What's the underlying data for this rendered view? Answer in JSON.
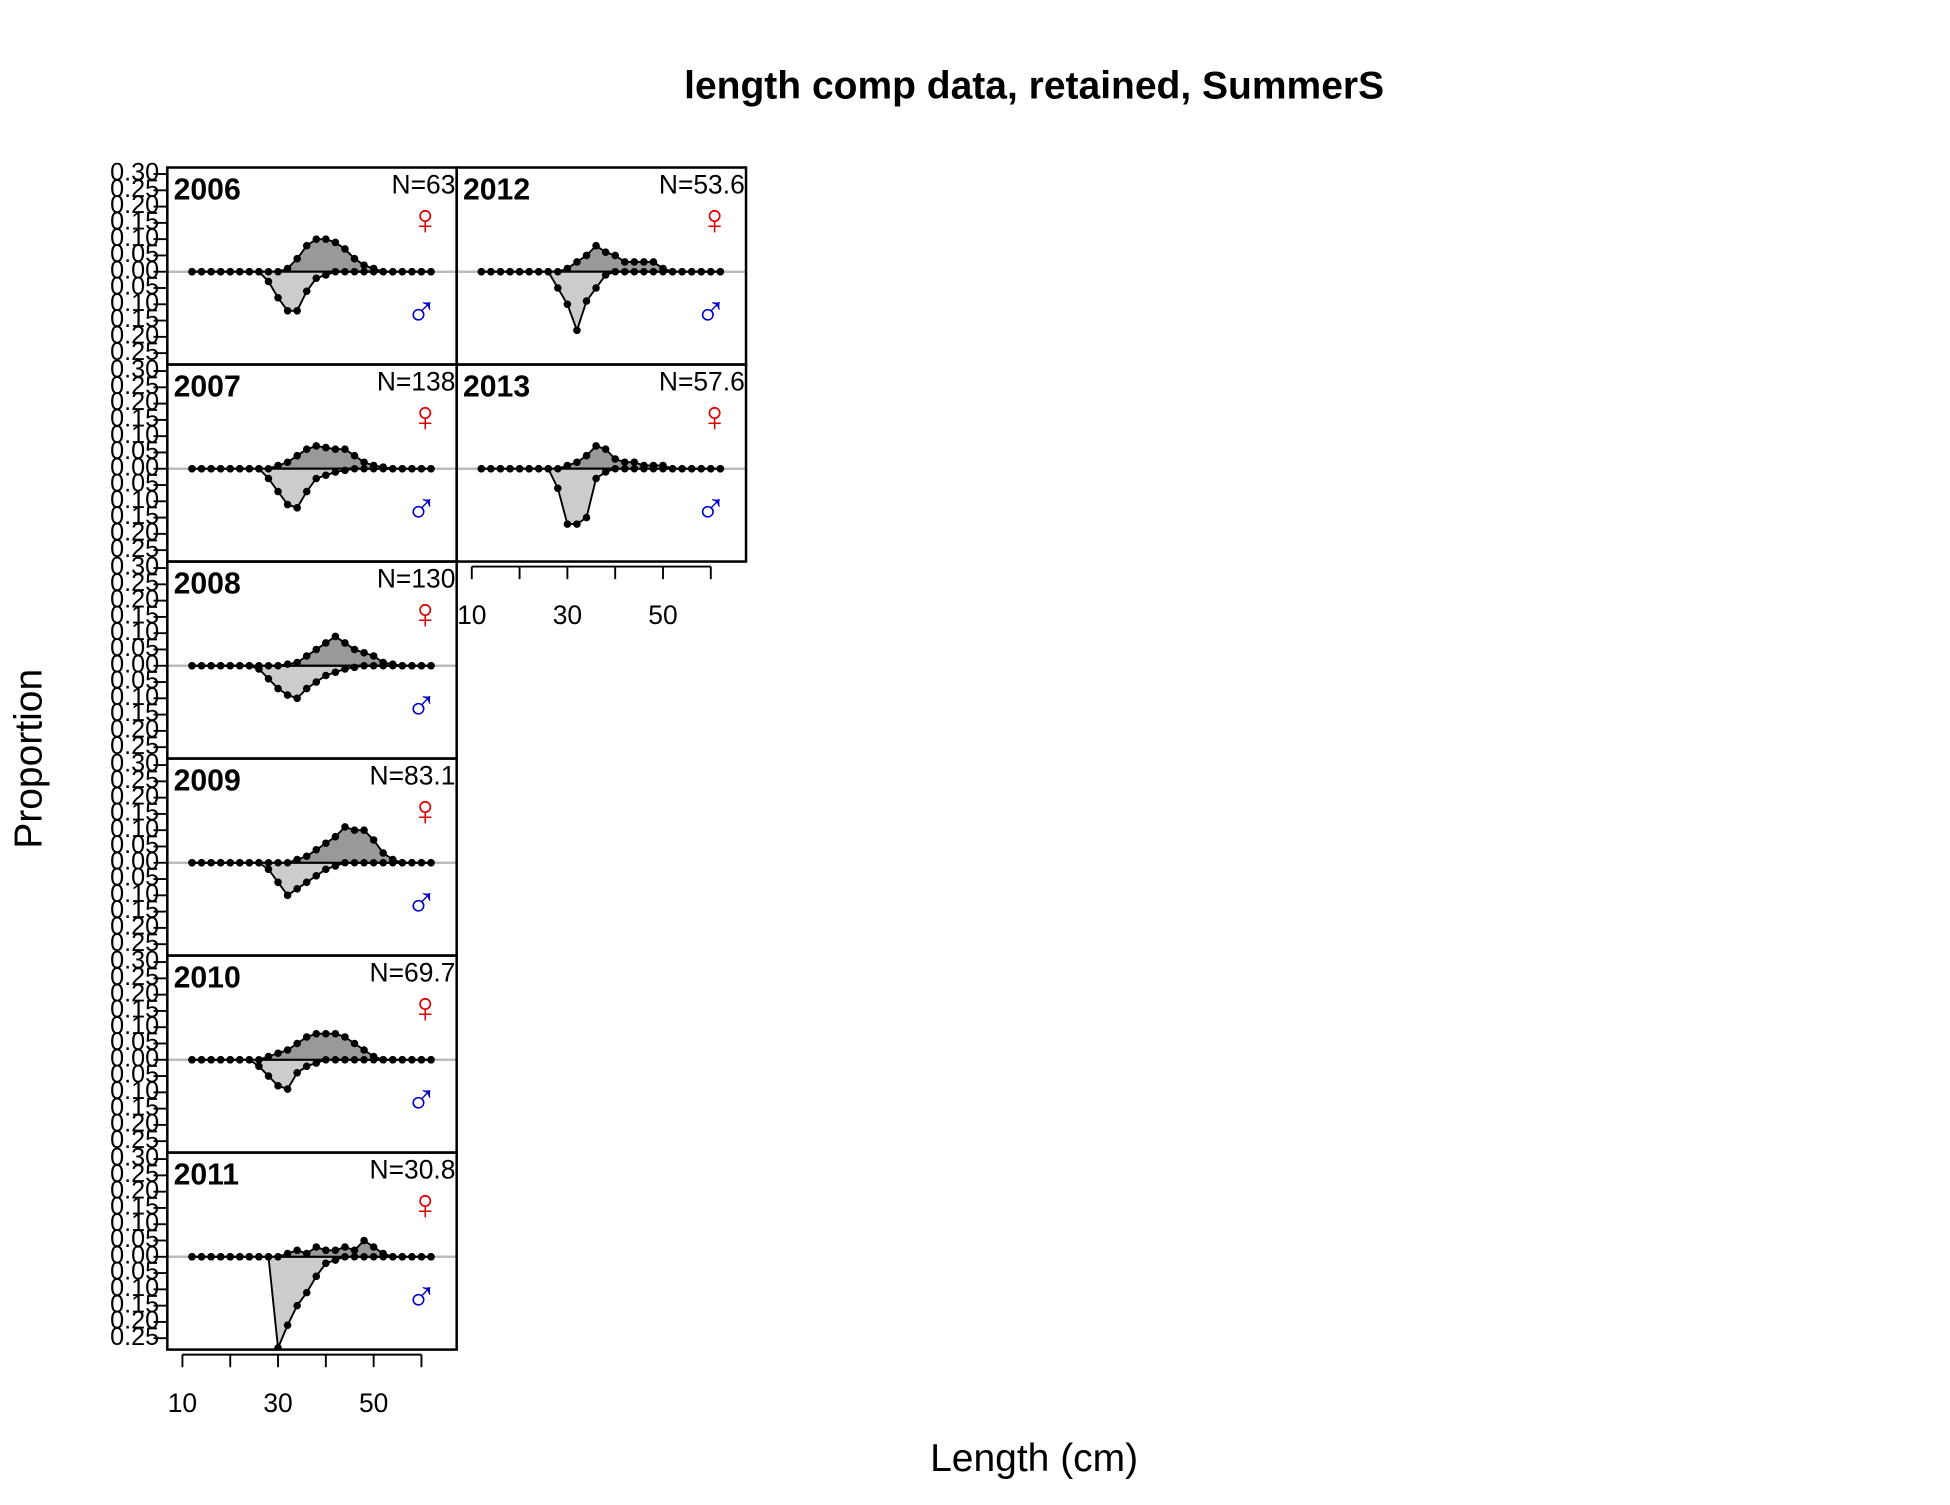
{
  "chart_data": {
    "type": "mirrored-area",
    "title": "length comp data, retained, SummerS",
    "xlabel": "Length (cm)",
    "ylabel": "Proportion",
    "bins": [
      12,
      14,
      16,
      18,
      20,
      22,
      24,
      26,
      28,
      30,
      32,
      34,
      36,
      38,
      40,
      42,
      44,
      46,
      48,
      50,
      52,
      54,
      56,
      58,
      60,
      62
    ],
    "xlim": [
      6.84,
      67.37
    ],
    "xticks": [
      10,
      {
        "value": 20,
        "label": null
      },
      30,
      {
        "value": 40,
        "label": null
      },
      50,
      {
        "value": 60,
        "label": null
      }
    ],
    "ylim": [
      -0.285,
      0.32
    ],
    "yticks": [
      {
        "value": 0.3,
        "label": "0.30"
      },
      0.25,
      {
        "value": 0.2,
        "label": "0.20"
      },
      0.15,
      {
        "value": 0.1,
        "label": "0.10"
      },
      0.05,
      {
        "value": 0,
        "label": "0.00"
      },
      {
        "value": -0.05,
        "label": "0.05"
      },
      {
        "value": -0.1,
        "label": "0.10"
      },
      {
        "value": -0.15,
        "label": "0.15"
      },
      {
        "value": -0.2,
        "label": "0.20"
      },
      {
        "value": -0.25,
        "label": "0.25"
      }
    ],
    "panels": [
      {
        "year": "2006",
        "n": {
          "value": 63,
          "label": "N=63"
        },
        "series": [
          {
            "name": "♀",
            "color": "#dd0000",
            "fill": "#999999",
            "values": [
              0,
              0,
              0,
              0,
              0,
              0,
              0,
              0,
              0,
              0,
              0.01,
              0.04,
              0.08,
              0.1,
              0.1,
              0.09,
              0.07,
              0.04,
              0.02,
              0.01,
              0,
              0,
              0,
              0,
              0,
              0
            ]
          },
          {
            "name": "♂",
            "color": "#0000cc",
            "fill": "#cccccc",
            "values": [
              0,
              0,
              0,
              0,
              0,
              0,
              0,
              0,
              -0.03,
              -0.08,
              -0.12,
              -0.12,
              -0.06,
              -0.02,
              -0.01,
              0,
              0,
              0,
              0,
              0,
              0,
              0,
              0,
              0,
              0,
              0
            ]
          }
        ]
      },
      {
        "year": "2007",
        "n": {
          "value": 138,
          "label": "N=138"
        },
        "series": [
          {
            "name": "♀",
            "color": "#dd0000",
            "fill": "#999999",
            "values": [
              0,
              0,
              0,
              0,
              0,
              0,
              0,
              0,
              0,
              0.01,
              0.02,
              0.04,
              0.06,
              0.07,
              0.065,
              0.06,
              0.06,
              0.04,
              0.02,
              0.01,
              0.005,
              0,
              0,
              0,
              0,
              0
            ]
          },
          {
            "name": "♂",
            "color": "#0000cc",
            "fill": "#cccccc",
            "values": [
              0,
              0,
              0,
              0,
              0,
              0,
              0,
              0,
              -0.03,
              -0.07,
              -0.11,
              -0.12,
              -0.07,
              -0.03,
              -0.02,
              -0.01,
              -0.005,
              0,
              0,
              0,
              0,
              0,
              0,
              0,
              0,
              0
            ]
          }
        ]
      },
      {
        "year": "2008",
        "n": {
          "value": 130,
          "label": "N=130"
        },
        "series": [
          {
            "name": "♀",
            "color": "#dd0000",
            "fill": "#999999",
            "values": [
              0,
              0,
              0,
              0,
              0,
              0,
              0,
              0,
              0,
              0,
              0.005,
              0.01,
              0.03,
              0.05,
              0.07,
              0.09,
              0.07,
              0.05,
              0.04,
              0.03,
              0.01,
              0.005,
              0,
              0,
              0,
              0
            ]
          },
          {
            "name": "♂",
            "color": "#0000cc",
            "fill": "#cccccc",
            "values": [
              0,
              0,
              0,
              0,
              0,
              0,
              0,
              -0.01,
              -0.04,
              -0.07,
              -0.09,
              -0.1,
              -0.07,
              -0.05,
              -0.03,
              -0.02,
              -0.01,
              -0.005,
              0,
              0,
              0,
              0,
              0,
              0,
              0,
              0
            ]
          }
        ]
      },
      {
        "year": "2009",
        "n": {
          "value": 83.1,
          "label": "N=83.1"
        },
        "series": [
          {
            "name": "♀",
            "color": "#dd0000",
            "fill": "#999999",
            "values": [
              0,
              0,
              0,
              0,
              0,
              0,
              0,
              0,
              0,
              0,
              0,
              0.01,
              0.02,
              0.04,
              0.06,
              0.08,
              0.11,
              0.1,
              0.1,
              0.07,
              0.03,
              0.01,
              0,
              0,
              0,
              0
            ]
          },
          {
            "name": "♂",
            "color": "#0000cc",
            "fill": "#cccccc",
            "values": [
              0,
              0,
              0,
              0,
              0,
              0,
              0,
              0,
              -0.02,
              -0.06,
              -0.1,
              -0.08,
              -0.06,
              -0.04,
              -0.02,
              -0.01,
              0,
              0,
              0,
              0,
              0,
              0,
              0,
              0,
              0,
              0
            ]
          }
        ]
      },
      {
        "year": "2010",
        "n": {
          "value": 69.7,
          "label": "N=69.7"
        },
        "series": [
          {
            "name": "♀",
            "color": "#dd0000",
            "fill": "#999999",
            "values": [
              0,
              0,
              0,
              0,
              0,
              0,
              0,
              0,
              0.01,
              0.02,
              0.03,
              0.05,
              0.07,
              0.08,
              0.08,
              0.08,
              0.07,
              0.05,
              0.03,
              0.01,
              0,
              0,
              0,
              0,
              0,
              0
            ]
          },
          {
            "name": "♂",
            "color": "#0000cc",
            "fill": "#cccccc",
            "values": [
              0,
              0,
              0,
              0,
              0,
              0,
              0,
              -0.02,
              -0.05,
              -0.08,
              -0.09,
              -0.04,
              -0.02,
              -0.01,
              0,
              0,
              0,
              0,
              0,
              0,
              0,
              0,
              0,
              0,
              0,
              0
            ]
          }
        ]
      },
      {
        "year": "2011",
        "n": {
          "value": 30.8,
          "label": "N=30.8"
        },
        "series": [
          {
            "name": "♀",
            "color": "#dd0000",
            "fill": "#999999",
            "values": [
              0,
              0,
              0,
              0,
              0,
              0,
              0,
              0,
              0,
              0,
              0.01,
              0.02,
              0.01,
              0.03,
              0.02,
              0.02,
              0.03,
              0.02,
              0.05,
              0.03,
              0.01,
              0,
              0,
              0,
              0,
              0
            ]
          },
          {
            "name": "♂",
            "color": "#0000cc",
            "fill": "#cccccc",
            "values": [
              0,
              0,
              0,
              0,
              0,
              0,
              0,
              0,
              0,
              -0.28,
              -0.21,
              -0.15,
              -0.11,
              -0.06,
              -0.02,
              -0.01,
              0,
              0,
              0,
              0,
              0,
              0,
              0,
              0,
              0,
              0
            ]
          }
        ]
      },
      {
        "year": "2012",
        "n": {
          "value": 53.6,
          "label": "N=53.6"
        },
        "series": [
          {
            "name": "♀",
            "color": "#dd0000",
            "fill": "#999999",
            "values": [
              0,
              0,
              0,
              0,
              0,
              0,
              0,
              0,
              0,
              0.01,
              0.03,
              0.05,
              0.08,
              0.06,
              0.05,
              0.03,
              0.03,
              0.03,
              0.03,
              0.01,
              0,
              0,
              0,
              0,
              0,
              0
            ]
          },
          {
            "name": "♂",
            "color": "#0000cc",
            "fill": "#cccccc",
            "values": [
              0,
              0,
              0,
              0,
              0,
              0,
              0,
              0,
              -0.05,
              -0.1,
              -0.18,
              -0.09,
              -0.05,
              -0.01,
              0,
              0,
              0,
              0,
              0,
              0,
              0,
              0,
              0,
              0,
              0,
              0
            ]
          }
        ]
      },
      {
        "year": "2013",
        "n": {
          "value": 57.6,
          "label": "N=57.6"
        },
        "series": [
          {
            "name": "♀",
            "color": "#dd0000",
            "fill": "#999999",
            "values": [
              0,
              0,
              0,
              0,
              0,
              0,
              0,
              0,
              0,
              0.01,
              0.02,
              0.04,
              0.07,
              0.06,
              0.03,
              0.02,
              0.02,
              0.01,
              0.01,
              0.01,
              0,
              0,
              0,
              0,
              0,
              0
            ]
          },
          {
            "name": "♂",
            "color": "#0000cc",
            "fill": "#cccccc",
            "values": [
              0,
              0,
              0,
              0,
              0,
              0,
              0,
              0,
              -0.06,
              -0.17,
              -0.17,
              -0.15,
              -0.03,
              -0.01,
              0,
              0,
              0,
              0,
              0,
              0,
              0,
              0,
              0,
              0,
              0,
              0
            ]
          }
        ]
      }
    ]
  }
}
